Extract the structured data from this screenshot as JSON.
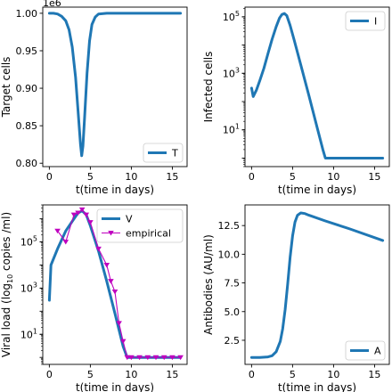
{
  "colors": {
    "line": "#1f77b4",
    "empirical": "#bf00bf",
    "axis": "#000000"
  },
  "chart_data": [
    {
      "type": "line",
      "scale": "linear",
      "xlabel": "t(time in days)",
      "ylabel": "Target cells",
      "offset_text": "1e6",
      "xlim": [
        -0.8,
        16.8
      ],
      "ylim": [
        0.7955,
        1.0082
      ],
      "xticks": [
        0,
        5,
        10,
        15
      ],
      "yticks": [
        0.8,
        0.85,
        0.9,
        0.95,
        1.0
      ],
      "ytick_labels": [
        "0.80",
        "0.85",
        "0.90",
        "0.95",
        "1.00"
      ],
      "legend": {
        "position": "lower-right",
        "entries": [
          "T"
        ]
      },
      "series": [
        {
          "name": "T",
          "marker": "none",
          "x": [
            0,
            0.5,
            1,
            1.5,
            2,
            2.4,
            2.8,
            3.2,
            3.5,
            3.8,
            3.95,
            4.1,
            4.3,
            4.6,
            4.9,
            5.2,
            5.6,
            6,
            7,
            9,
            12,
            16
          ],
          "y": [
            1.0,
            1.0,
            0.999,
            0.996,
            0.99,
            0.978,
            0.955,
            0.915,
            0.87,
            0.826,
            0.81,
            0.823,
            0.86,
            0.92,
            0.963,
            0.985,
            0.995,
            0.999,
            1.0,
            1.0,
            1.0,
            1.0
          ]
        }
      ]
    },
    {
      "type": "line",
      "scale": "log",
      "xlabel": "t(time in days)",
      "ylabel": "Infected cells",
      "xlim": [
        -0.8,
        16.8
      ],
      "ylim": [
        0.5,
        220000
      ],
      "xticks": [
        0,
        5,
        10,
        15
      ],
      "yticks": [
        10,
        1000,
        100000
      ],
      "ytick_labels": [
        [
          "10",
          "1"
        ],
        [
          "10",
          "3"
        ],
        [
          "10",
          "5"
        ]
      ],
      "legend": {
        "position": "upper-right",
        "entries": [
          "I"
        ]
      },
      "series": [
        {
          "name": "I",
          "marker": "none",
          "x": [
            0,
            0.2,
            0.6,
            1,
            1.5,
            2,
            2.5,
            3,
            3.4,
            3.7,
            4,
            4.3,
            4.7,
            5.2,
            6,
            7,
            8,
            8.7,
            9,
            12,
            16
          ],
          "y": [
            300,
            150,
            260,
            550,
            1500,
            5000,
            16000,
            45000,
            90000,
            120000,
            130000,
            110000,
            50000,
            15000,
            2000,
            160,
            12,
            2,
            1,
            1,
            1
          ]
        }
      ]
    },
    {
      "type": "line",
      "scale": "log",
      "xlabel": "t(time in days)",
      "ylabel": "Viral load (log10 copies /ml)",
      "xlim": [
        -0.8,
        16.8
      ],
      "ylim": [
        0.5,
        4000000
      ],
      "xticks": [
        0,
        5,
        10,
        15
      ],
      "yticks": [
        10,
        1000,
        100000
      ],
      "ytick_labels": [
        [
          "10",
          "1"
        ],
        [
          "10",
          "3"
        ],
        [
          "10",
          "5"
        ]
      ],
      "legend": {
        "position": "upper-right",
        "entries": [
          "V",
          "empirical"
        ]
      },
      "series": [
        {
          "name": "V",
          "marker": "none",
          "x": [
            0,
            0.2,
            1,
            2,
            3,
            3.5,
            4,
            4.5,
            5,
            6,
            7,
            8,
            9,
            9.5,
            10,
            12,
            16
          ],
          "y": [
            300,
            10000,
            50000,
            300000,
            1000000,
            1800000,
            2200000,
            1500000,
            500000,
            40000,
            2000,
            80,
            3,
            1,
            1,
            1,
            1
          ]
        },
        {
          "name": "empirical",
          "marker": "triangle-down",
          "x": [
            1,
            2,
            3,
            3.5,
            4,
            4.5,
            5,
            6,
            7,
            7.5,
            8,
            8.5,
            9,
            9.5,
            10,
            11,
            12,
            13,
            14,
            15,
            16
          ],
          "y": [
            300000,
            100000,
            1500000,
            1800000,
            2500000,
            1500000,
            700000,
            50000,
            10000,
            2000,
            700,
            30,
            5,
            1,
            1,
            1,
            1,
            1,
            1,
            1,
            1
          ]
        }
      ]
    },
    {
      "type": "line",
      "scale": "linear",
      "xlabel": "t(time in days)",
      "ylabel": "Antibodies (AU/ml)",
      "xlim": [
        -0.8,
        16.8
      ],
      "ylim": [
        0.4,
        14.3
      ],
      "xticks": [
        0,
        5,
        10,
        15
      ],
      "yticks": [
        2.5,
        5.0,
        7.5,
        10.0,
        12.5
      ],
      "ytick_labels": [
        "2.5",
        "5.0",
        "7.5",
        "10.0",
        "12.5"
      ],
      "legend": {
        "position": "lower-right",
        "entries": [
          "A"
        ]
      },
      "series": [
        {
          "name": "A",
          "marker": "none",
          "x": [
            0,
            1,
            2,
            2.5,
            3,
            3.5,
            3.8,
            4.1,
            4.4,
            4.7,
            5,
            5.3,
            5.6,
            6,
            6.5,
            7,
            9,
            12,
            16
          ],
          "y": [
            1.0,
            1.0,
            1.05,
            1.15,
            1.5,
            2.4,
            3.5,
            5.2,
            7.4,
            9.7,
            11.6,
            12.8,
            13.4,
            13.6,
            13.55,
            13.4,
            12.9,
            12.2,
            11.2
          ]
        }
      ]
    }
  ]
}
